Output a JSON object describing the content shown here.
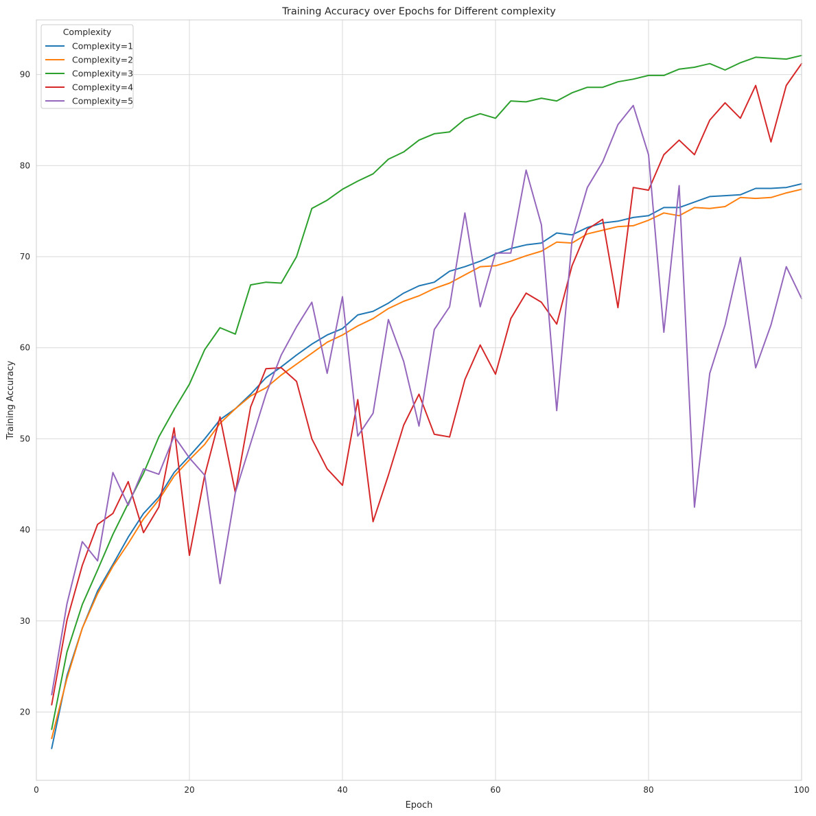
{
  "chart_data": {
    "type": "line",
    "title": "Training Accuracy over Epochs for Different complexity",
    "xlabel": "Epoch",
    "ylabel": "Training Accuracy",
    "xlim": [
      0,
      100
    ],
    "ylim": [
      12.5,
      96
    ],
    "xticks": [
      0,
      20,
      40,
      60,
      80,
      100
    ],
    "yticks": [
      20,
      30,
      40,
      50,
      60,
      70,
      80,
      90
    ],
    "grid": true,
    "legend": {
      "title": "Complexity",
      "placement": "top-left"
    },
    "x": [
      2,
      4,
      6,
      8,
      10,
      12,
      14,
      16,
      18,
      20,
      22,
      24,
      26,
      28,
      30,
      32,
      34,
      36,
      38,
      40,
      42,
      44,
      46,
      48,
      50,
      52,
      54,
      56,
      58,
      60,
      62,
      64,
      66,
      68,
      70,
      72,
      74,
      76,
      78,
      80,
      82,
      84,
      86,
      88,
      90,
      92,
      94,
      96,
      98,
      100
    ],
    "series": [
      {
        "name": "Complexity=1",
        "color": "#1f77b4",
        "values": [
          16.0,
          24.0,
          29.2,
          33.3,
          36.2,
          39.2,
          41.8,
          43.6,
          46.3,
          48.1,
          50.0,
          52.1,
          53.3,
          54.9,
          56.7,
          57.9,
          59.2,
          60.4,
          61.4,
          62.1,
          63.6,
          64.0,
          64.9,
          66.0,
          66.8,
          67.2,
          68.4,
          68.9,
          69.5,
          70.3,
          70.9,
          71.3,
          71.5,
          72.6,
          72.4,
          73.2,
          73.7,
          73.9,
          74.3,
          74.5,
          75.4,
          75.4,
          76.0,
          76.6,
          76.7,
          76.8,
          77.5,
          77.5,
          77.6,
          78.0
        ]
      },
      {
        "name": "Complexity=2",
        "color": "#ff7f0e",
        "values": [
          17.1,
          23.7,
          29.2,
          33.0,
          36.0,
          38.5,
          41.2,
          43.3,
          45.9,
          47.7,
          49.4,
          51.7,
          53.3,
          54.7,
          55.6,
          57.0,
          58.2,
          59.4,
          60.6,
          61.4,
          62.4,
          63.2,
          64.3,
          65.1,
          65.7,
          66.5,
          67.1,
          68.0,
          68.9,
          69.0,
          69.5,
          70.1,
          70.6,
          71.6,
          71.5,
          72.5,
          72.9,
          73.3,
          73.4,
          74.0,
          74.8,
          74.5,
          75.4,
          75.3,
          75.5,
          76.5,
          76.4,
          76.5,
          77.0,
          77.4
        ]
      },
      {
        "name": "Complexity=3",
        "color": "#2ca02c",
        "values": [
          18.1,
          26.6,
          31.8,
          35.6,
          39.5,
          42.9,
          46.2,
          50.2,
          53.2,
          56.0,
          59.8,
          62.2,
          61.5,
          66.9,
          67.2,
          67.1,
          70.0,
          75.3,
          76.2,
          77.4,
          78.3,
          79.1,
          80.7,
          81.5,
          82.8,
          83.5,
          83.7,
          85.1,
          85.7,
          85.2,
          87.1,
          87.0,
          87.4,
          87.1,
          88.0,
          88.6,
          88.6,
          89.2,
          89.5,
          89.9,
          89.9,
          90.6,
          90.8,
          91.2,
          90.5,
          91.3,
          91.9,
          91.8,
          91.7,
          92.1
        ]
      },
      {
        "name": "Complexity=4",
        "color": "#d62728",
        "values": [
          20.8,
          30.1,
          36.1,
          40.6,
          41.8,
          45.3,
          39.7,
          42.5,
          51.2,
          37.2,
          46.0,
          52.4,
          44.1,
          53.5,
          57.7,
          57.8,
          56.3,
          50.0,
          46.7,
          44.9,
          54.3,
          40.9,
          46.0,
          51.5,
          54.9,
          50.5,
          50.2,
          56.5,
          60.3,
          57.1,
          63.2,
          66.0,
          65.0,
          62.6,
          69.0,
          73.0,
          74.1,
          64.4,
          77.6,
          77.3,
          81.2,
          82.8,
          81.2,
          85.0,
          86.9,
          85.2,
          88.8,
          82.6,
          88.8,
          91.2
        ]
      },
      {
        "name": "Complexity=5",
        "color": "#9467bd",
        "values": [
          21.9,
          31.9,
          38.7,
          36.6,
          46.3,
          42.7,
          46.7,
          46.1,
          50.3,
          47.9,
          46.0,
          34.1,
          44.1,
          49.5,
          54.9,
          59.2,
          62.3,
          65.0,
          57.2,
          65.6,
          50.3,
          52.8,
          63.1,
          58.5,
          51.4,
          62.0,
          64.5,
          74.8,
          64.5,
          70.4,
          70.4,
          79.5,
          73.5,
          53.1,
          71.8,
          77.6,
          80.4,
          84.5,
          86.6,
          81.2,
          61.7,
          77.8,
          42.5,
          57.2,
          62.5,
          69.9,
          57.8,
          62.5,
          68.9,
          65.4
        ]
      }
    ]
  }
}
